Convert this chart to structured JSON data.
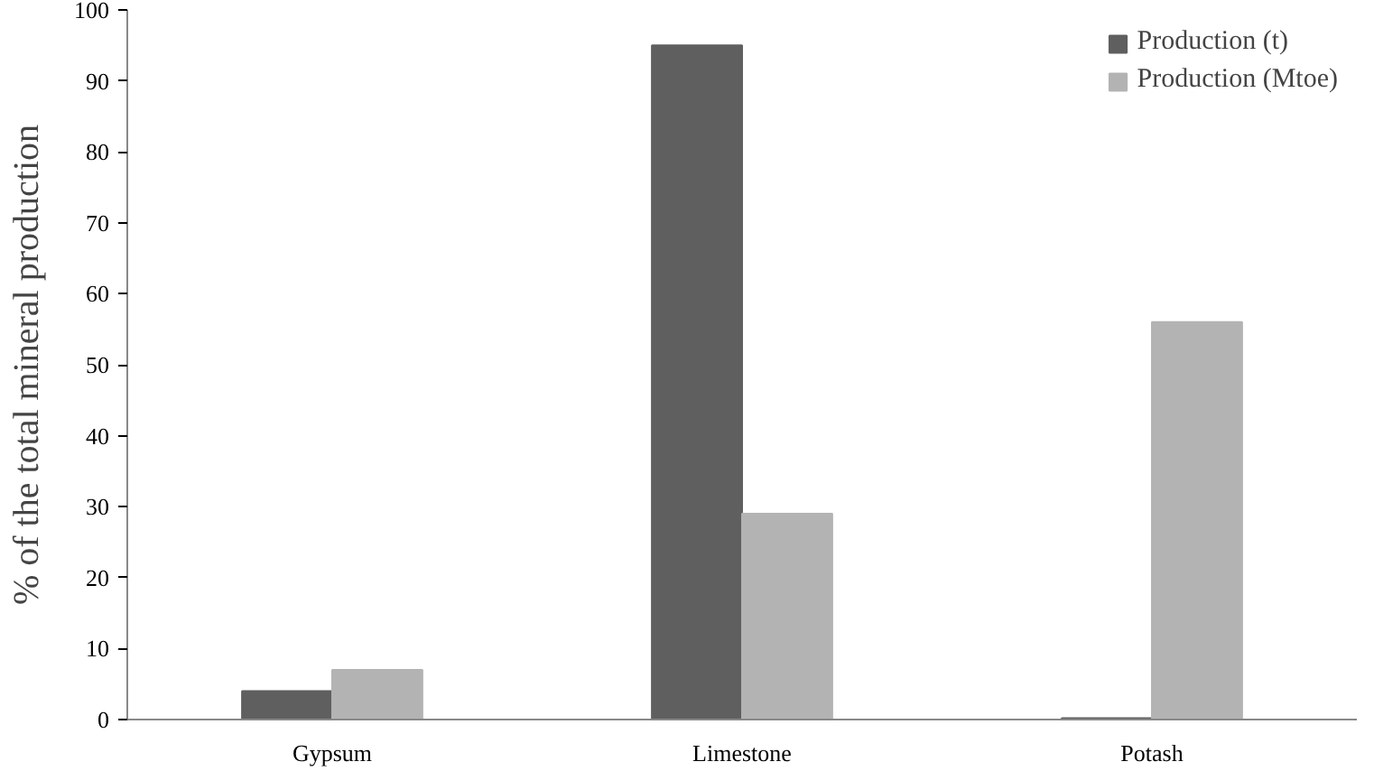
{
  "chart_data": {
    "type": "bar",
    "ylabel": "% of the total mineral production",
    "categories": [
      "Gypsum",
      "Limestone",
      "Potash"
    ],
    "series": [
      {
        "name": "Production (t)",
        "color": "#5f5f5f",
        "values": [
          4,
          95,
          0.2
        ]
      },
      {
        "name": "Production (Mtoe)",
        "color": "#b3b3b3",
        "values": [
          7,
          29,
          56
        ]
      }
    ],
    "ylim": [
      0,
      100
    ],
    "yticks": [
      0,
      10,
      20,
      30,
      40,
      50,
      60,
      70,
      80,
      90,
      100
    ],
    "legend": "top right"
  }
}
